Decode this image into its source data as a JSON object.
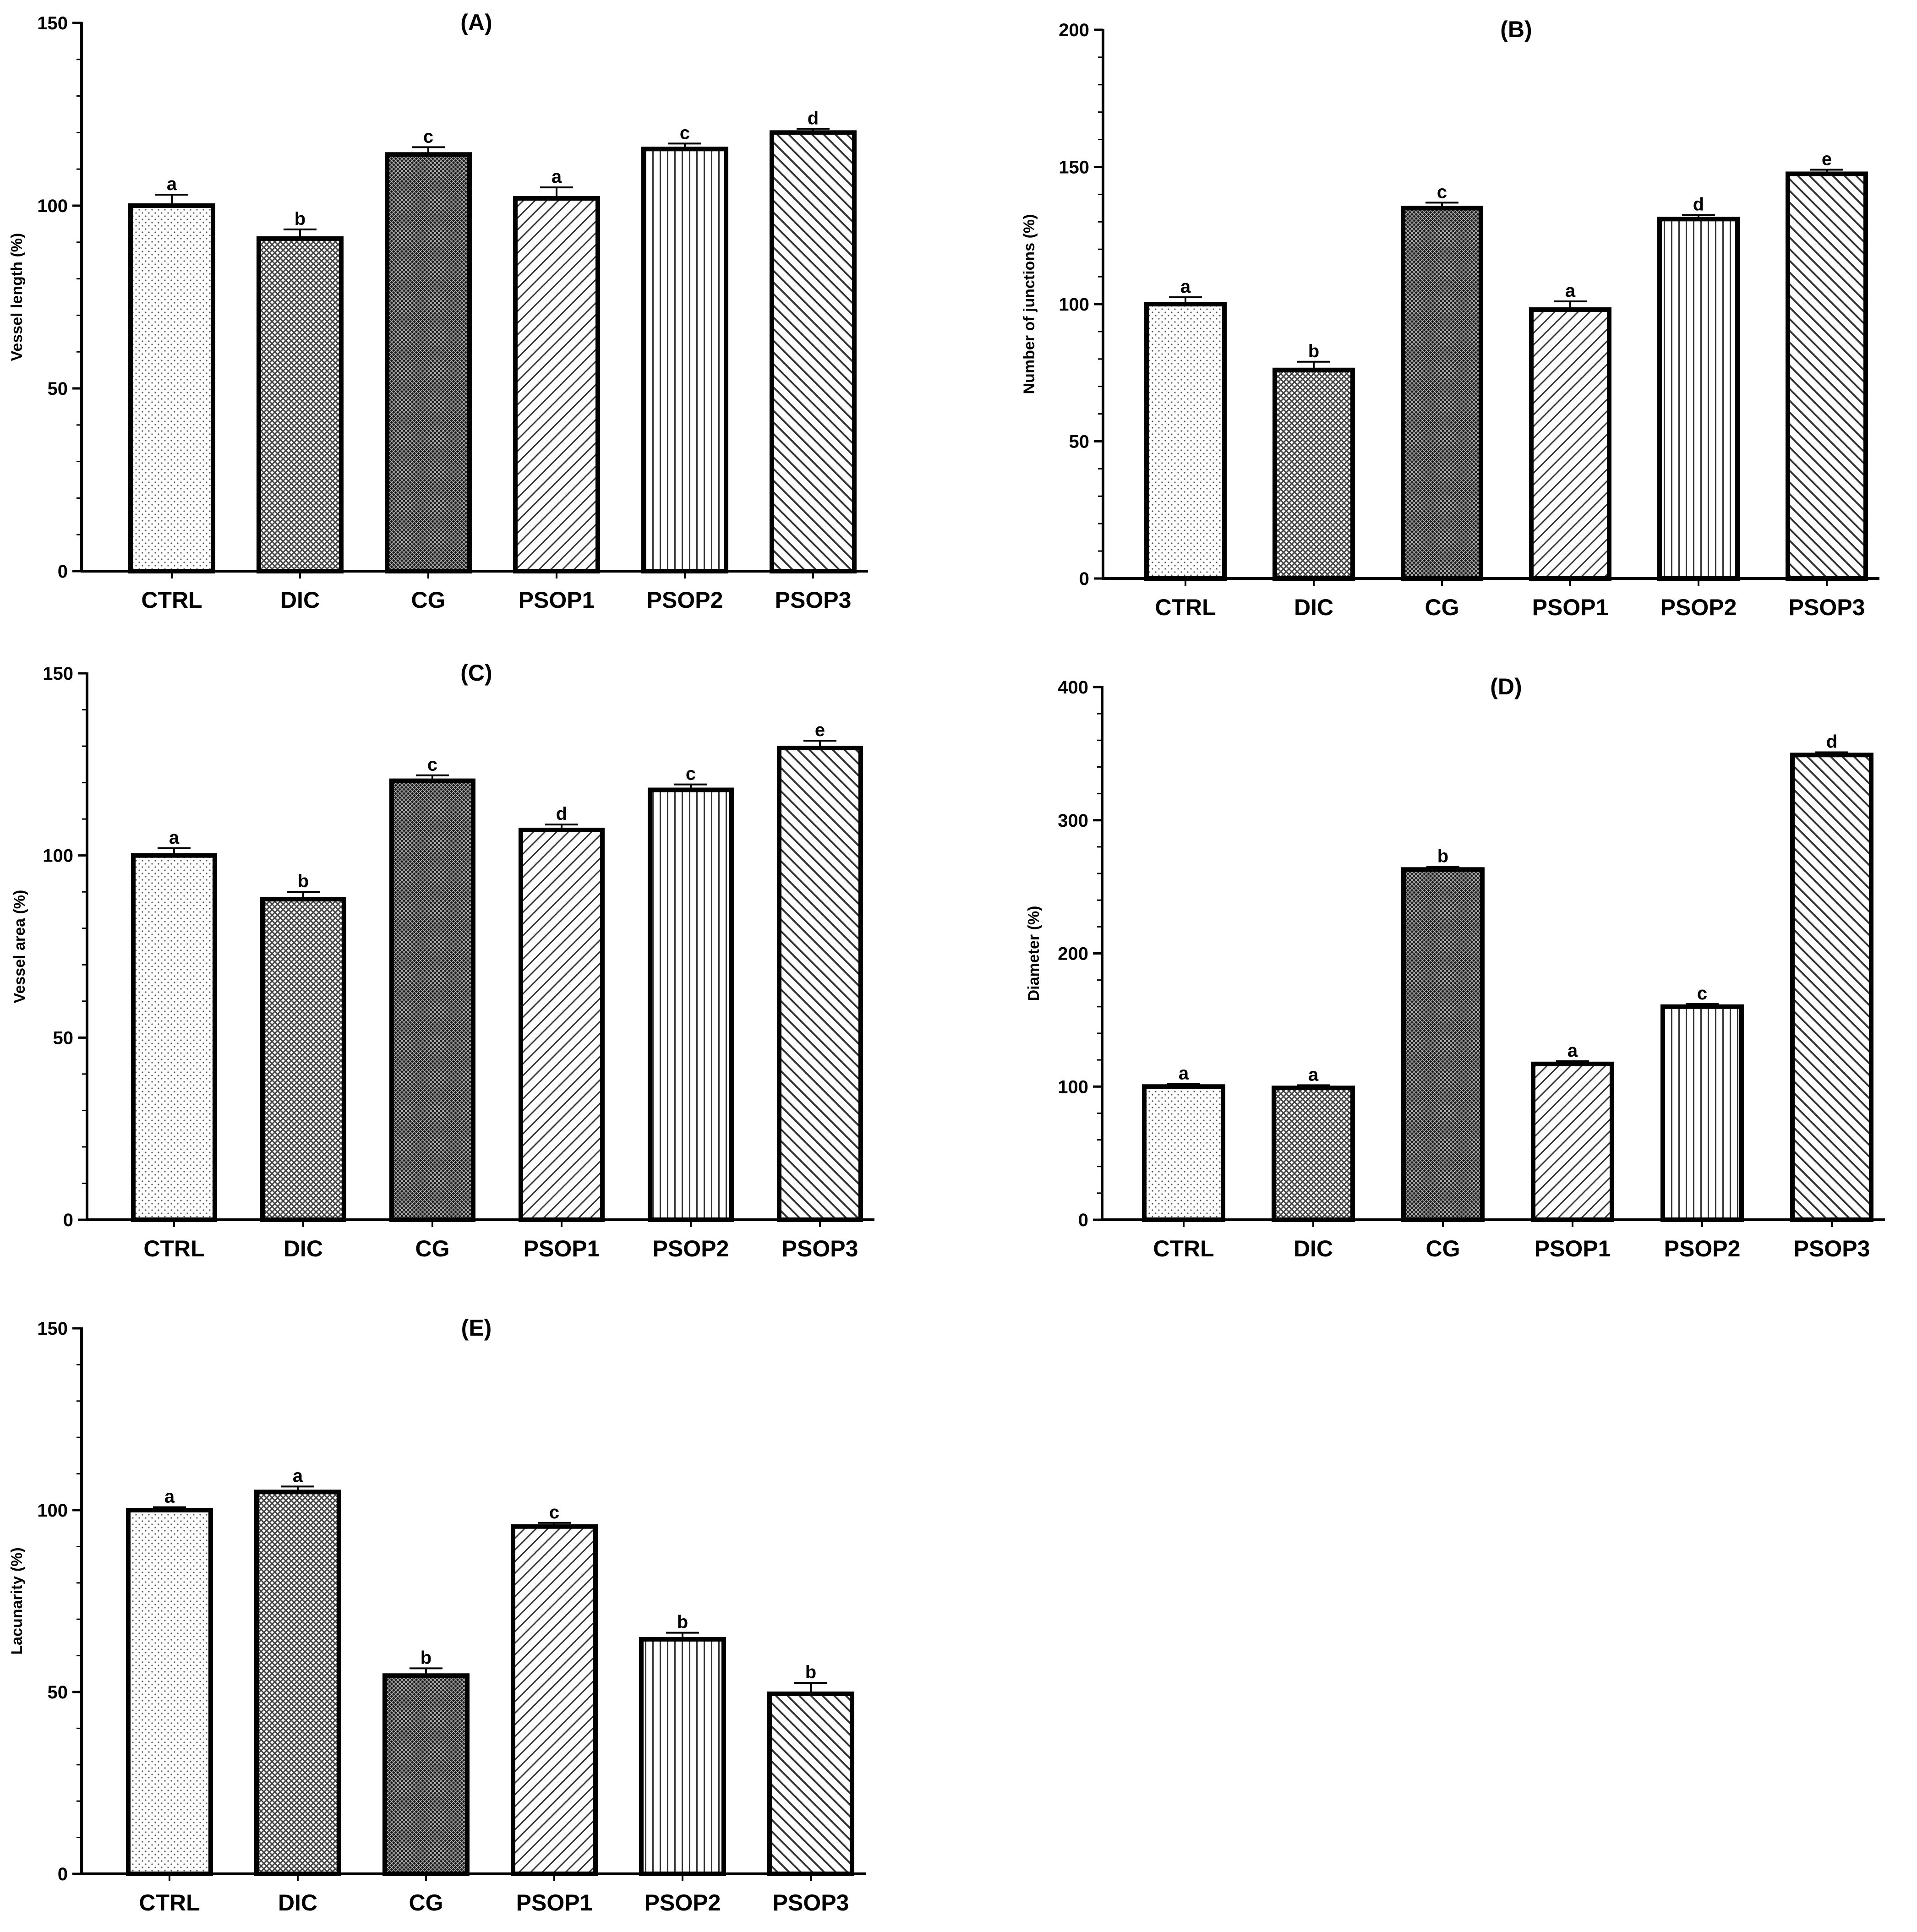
{
  "chart_data": [
    {
      "type": "bar",
      "title": "(A)",
      "ylabel": "Vessel  length (%)",
      "ylim": [
        0,
        150
      ],
      "yticks": [
        0,
        50,
        100,
        150
      ],
      "categories": [
        "CTRL",
        "DIC",
        "CG",
        "PSOP1",
        "PSOP2",
        "PSOP3"
      ],
      "values": [
        100,
        91,
        114,
        102,
        115.5,
        120
      ],
      "errors": [
        3,
        2.5,
        2,
        3,
        1.5,
        1
      ],
      "significance": [
        "a",
        "b",
        "c",
        "a",
        "c",
        "d"
      ]
    },
    {
      "type": "bar",
      "title": "(B)",
      "ylabel": "Number of  junctions (%)",
      "ylim": [
        0,
        200
      ],
      "yticks": [
        0,
        50,
        100,
        150,
        200
      ],
      "categories": [
        "CTRL",
        "DIC",
        "CG",
        "PSOP1",
        "PSOP2",
        "PSOP3"
      ],
      "values": [
        100,
        76,
        135,
        98,
        131,
        147.5
      ],
      "errors": [
        2.5,
        3,
        2,
        3,
        1.5,
        1.5
      ],
      "significance": [
        "a",
        "b",
        "c",
        "a",
        "d",
        "e"
      ]
    },
    {
      "type": "bar",
      "title": "(C)",
      "ylabel": "Vessel   area (%)",
      "ylim": [
        0,
        150
      ],
      "yticks": [
        0,
        50,
        100,
        150
      ],
      "categories": [
        "CTRL",
        "DIC",
        "CG",
        "PSOP1",
        "PSOP2",
        "PSOP3"
      ],
      "values": [
        100,
        88,
        120.5,
        107,
        118,
        129.5
      ],
      "errors": [
        2,
        2,
        1.5,
        1.5,
        1.5,
        2
      ],
      "significance": [
        "a",
        "b",
        "c",
        "d",
        "c",
        "e"
      ]
    },
    {
      "type": "bar",
      "title": "(D)",
      "ylabel": "Diameter (%)",
      "ylim": [
        0,
        400
      ],
      "yticks": [
        0,
        100,
        200,
        300,
        400
      ],
      "categories": [
        "CTRL",
        "DIC",
        "CG",
        "PSOP1",
        "PSOP2",
        "PSOP3"
      ],
      "values": [
        100,
        99,
        263,
        117,
        160,
        349
      ],
      "errors": [
        2,
        2,
        2,
        2,
        2,
        2
      ],
      "significance": [
        "a",
        "a",
        "b",
        "a",
        "c",
        "d"
      ]
    },
    {
      "type": "bar",
      "title": "(E)",
      "ylabel": "Lacunarity (%)",
      "ylim": [
        0,
        150
      ],
      "yticks": [
        0,
        50,
        100,
        150
      ],
      "categories": [
        "CTRL",
        "DIC",
        "CG",
        "PSOP1",
        "PSOP2",
        "PSOP3"
      ],
      "values": [
        100,
        105,
        54.5,
        95.5,
        64.5,
        49.5
      ],
      "errors": [
        0.8,
        1.5,
        2,
        1,
        1.8,
        3
      ],
      "significance": [
        "a",
        "a",
        "b",
        "c",
        "b",
        "b"
      ]
    }
  ]
}
